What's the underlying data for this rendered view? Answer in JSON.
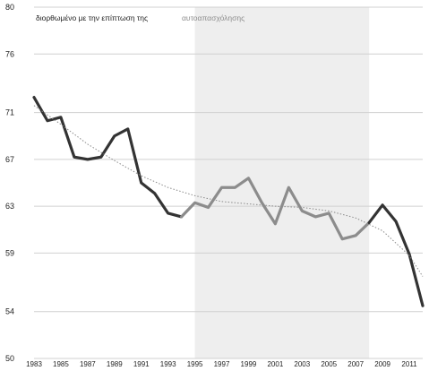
{
  "chart_data": {
    "type": "line",
    "legend": {
      "dark_label": "διορθωμένο με την επίπτωση της",
      "light_label": "αυτοαπασχόλησης"
    },
    "x_ticks": [
      "1983",
      "1985",
      "1987",
      "1989",
      "1991",
      "1993",
      "1995",
      "1997",
      "1999",
      "2001",
      "2003",
      "2005",
      "2007",
      "2009",
      "2011"
    ],
    "y_ticks": [
      50,
      54,
      59,
      63,
      67,
      71,
      76,
      80
    ],
    "xlim": [
      1983,
      2012
    ],
    "ylim": [
      50,
      80
    ],
    "grid": "horizontal",
    "shaded_region": [
      1995,
      2008
    ],
    "colors": {
      "dark": "#333333",
      "light": "#8c8c8c",
      "shade": "#eeeeee",
      "grid": "#d0d0d0",
      "trend": "#8a8a8a"
    },
    "series": [
      {
        "style": "dark",
        "x": [
          1983,
          1984,
          1985,
          1986,
          1987,
          1988,
          1989,
          1990,
          1991,
          1992,
          1993,
          1994
        ],
        "y": [
          72.3,
          70.3,
          70.6,
          67.2,
          67.0,
          67.2,
          69.0,
          69.6,
          65.0,
          64.1,
          62.4,
          62.1
        ]
      },
      {
        "style": "light",
        "x": [
          1994,
          1995,
          1996,
          1997,
          1998,
          1999,
          2000,
          2001,
          2002,
          2003,
          2004,
          2005,
          2006,
          2007,
          2008
        ],
        "y": [
          62.1,
          63.3,
          62.9,
          64.6,
          64.6,
          65.4,
          63.3,
          61.5,
          64.6,
          62.6,
          62.1,
          62.4,
          60.2,
          60.5,
          61.6
        ]
      },
      {
        "style": "dark",
        "x": [
          2008,
          2009,
          2010,
          2011,
          2012
        ],
        "y": [
          61.6,
          63.1,
          61.7,
          58.9,
          54.5
        ]
      }
    ],
    "trend": {
      "style": "dotted",
      "x": [
        1983,
        1985,
        1987,
        1989,
        1991,
        1993,
        1995,
        1997,
        1999,
        2001,
        2003,
        2005,
        2007,
        2009,
        2011,
        2012
      ],
      "y": [
        71.6,
        70.0,
        68.3,
        66.9,
        65.6,
        64.6,
        63.9,
        63.4,
        63.2,
        63.0,
        62.9,
        62.6,
        62.0,
        60.9,
        58.8,
        57.0
      ]
    }
  }
}
